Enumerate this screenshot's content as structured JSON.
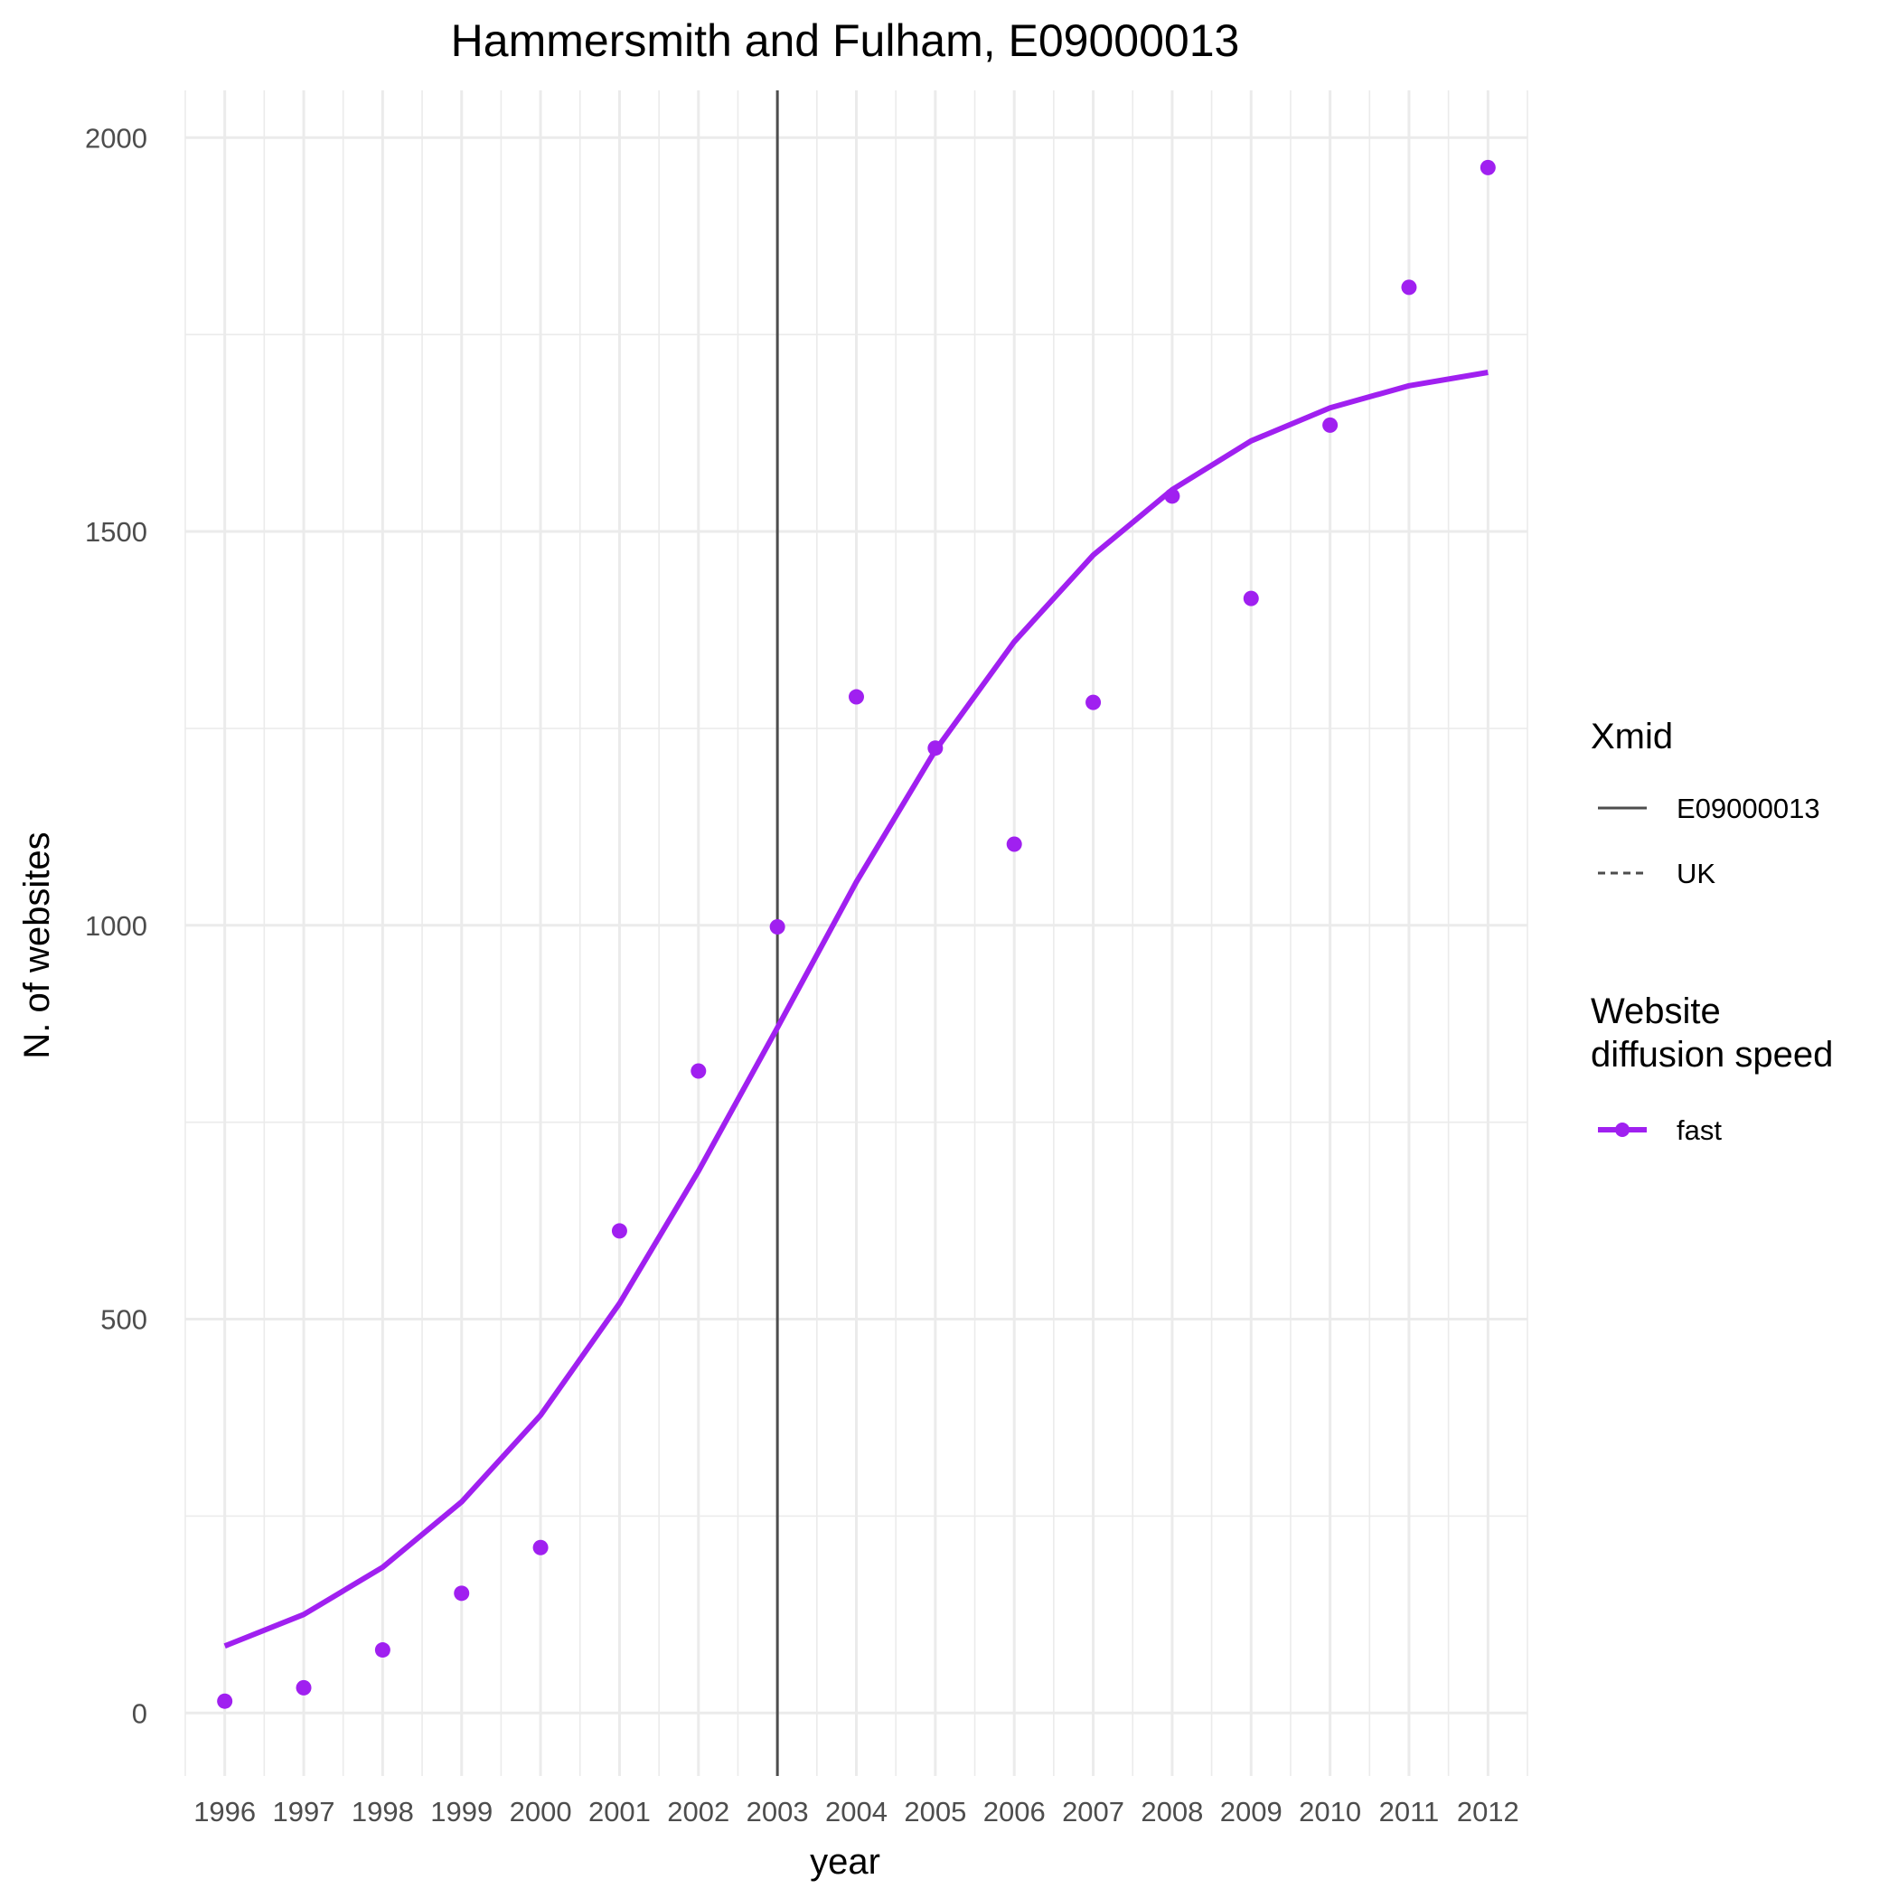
{
  "chart_data": {
    "type": "line",
    "title": "Hammersmith and Fulham, E09000013",
    "xlabel": "year",
    "ylabel": "N. of websites",
    "x": [
      1996,
      1997,
      1998,
      1999,
      2000,
      2001,
      2002,
      2003,
      2004,
      2005,
      2006,
      2007,
      2008,
      2009,
      2010,
      2011,
      2012
    ],
    "xlim": [
      1995.5,
      2012.5
    ],
    "ylim": [
      -80,
      2060
    ],
    "y_ticks": [
      0,
      500,
      1000,
      1500,
      2000
    ],
    "grid": true,
    "series": [
      {
        "name": "fast",
        "kind": "line",
        "color": "#a020f0",
        "values": [
          85,
          125,
          185,
          268,
          378,
          520,
          688,
          870,
          1055,
          1222,
          1360,
          1470,
          1553,
          1615,
          1657,
          1685,
          1702
        ]
      },
      {
        "name": "fast",
        "kind": "points",
        "color": "#a020f0",
        "values": [
          15,
          32,
          80,
          152,
          210,
          612,
          815,
          998,
          1290,
          1225,
          1103,
          1283,
          1545,
          1415,
          1635,
          1810,
          1962
        ]
      }
    ],
    "vlines": [
      {
        "x": 2003,
        "label": "E09000013",
        "style": "solid",
        "color": "#4d4d4d"
      }
    ],
    "legend": {
      "placement": "right",
      "groups": [
        {
          "title": "Xmid",
          "items": [
            {
              "label": "E09000013",
              "style": "solid",
              "color": "#4d4d4d"
            },
            {
              "label": "UK",
              "style": "dashed",
              "color": "#4d4d4d"
            }
          ]
        },
        {
          "title_lines": [
            "Website",
            "diffusion speed"
          ],
          "items": [
            {
              "label": "fast",
              "style": "line-point",
              "color": "#a020f0"
            }
          ]
        }
      ]
    }
  }
}
